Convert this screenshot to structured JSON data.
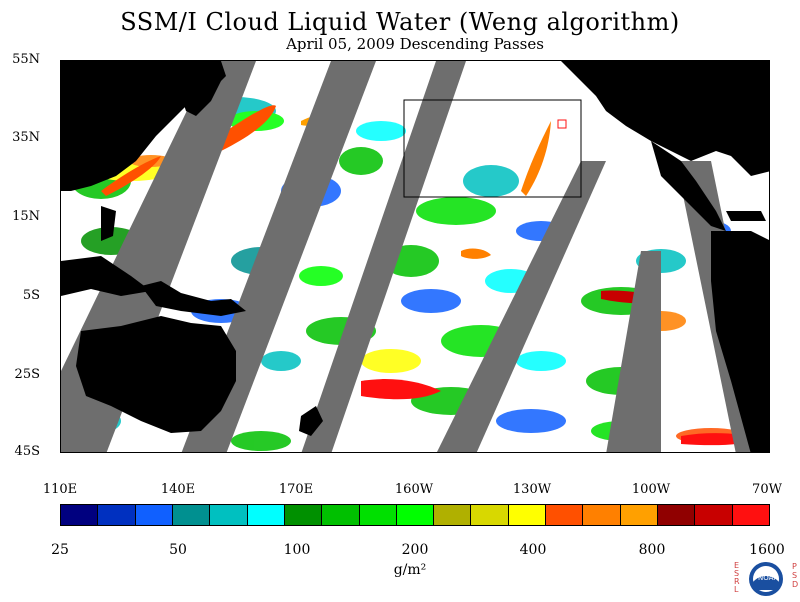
{
  "title": "SSM/I Cloud Liquid Water (Weng algorithm)",
  "subtitle": "April 05, 2009  Descending Passes",
  "map": {
    "lat_labels": [
      "55N",
      "35N",
      "15N",
      "5S",
      "25S",
      "45S"
    ],
    "lon_labels": [
      "110E",
      "140E",
      "170E",
      "160W",
      "130W",
      "100W",
      "70W"
    ],
    "colors": {
      "land": "#000000",
      "no_data": "#6e6e6e",
      "ocean": "#ffffff"
    }
  },
  "colorbar": {
    "colors": [
      "#00007f",
      "#0030c0",
      "#1060ff",
      "#009090",
      "#00c0c0",
      "#00ffff",
      "#009000",
      "#00c000",
      "#00e000",
      "#00ff00",
      "#b0b000",
      "#d8d800",
      "#ffff00",
      "#ff5000",
      "#ff8000",
      "#ffa000",
      "#900000",
      "#c80000",
      "#ff1010"
    ],
    "tick_labels": [
      "25",
      "50",
      "100",
      "200",
      "400",
      "800",
      "1600"
    ],
    "unit": "g/m²"
  },
  "logo": {
    "left_letters": "ESRL",
    "right_letters": "PSD",
    "center_text": "NOAA"
  }
}
